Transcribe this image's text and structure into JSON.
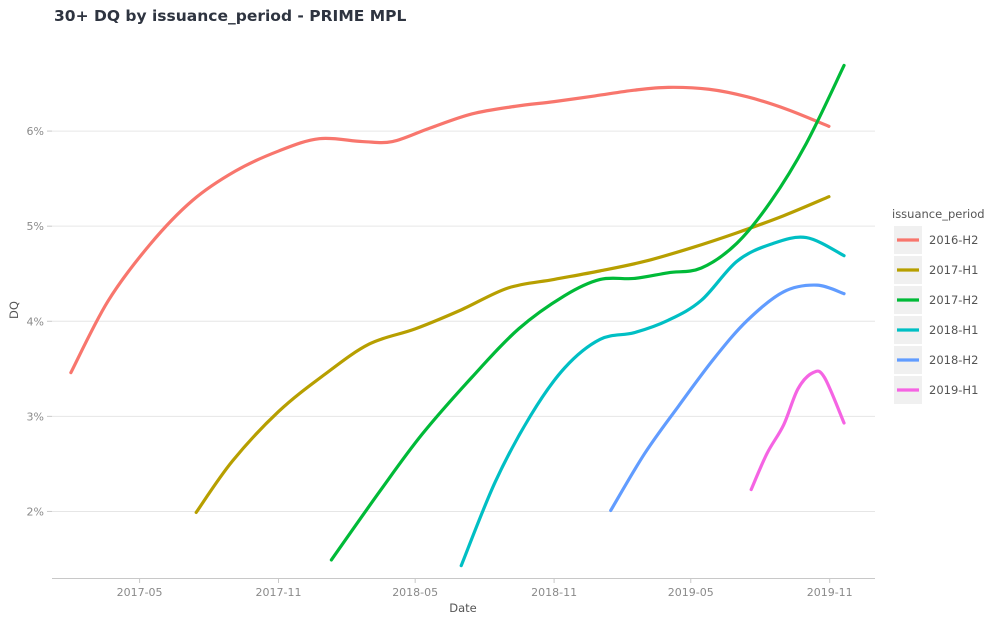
{
  "chart_data": {
    "type": "line",
    "title": "30+ DQ by issuance_period - PRIME MPL",
    "xlabel": "Date",
    "ylabel": "DQ",
    "xlim": [
      "2017-01-05",
      "2019-12-31"
    ],
    "ylim": [
      1.3,
      7.0
    ],
    "x_ticks": [
      {
        "date": "2017-05-01",
        "label": "2017-05"
      },
      {
        "date": "2017-11-01",
        "label": "2017-11"
      },
      {
        "date": "2018-05-01",
        "label": "2018-05"
      },
      {
        "date": "2018-11-01",
        "label": "2018-11"
      },
      {
        "date": "2019-05-01",
        "label": "2019-05"
      },
      {
        "date": "2019-11-01",
        "label": "2019-11"
      }
    ],
    "y_ticks": [
      {
        "value": 2,
        "label": "2%"
      },
      {
        "value": 3,
        "label": "3%"
      },
      {
        "value": 4,
        "label": "4%"
      },
      {
        "value": 5,
        "label": "5%"
      },
      {
        "value": 6,
        "label": "6%"
      }
    ],
    "grid": "horizontal",
    "legend": {
      "title": "issuance_period",
      "placement": "right"
    },
    "series": [
      {
        "name": "2016-H2",
        "color": "#F8766D",
        "points": [
          [
            "2017-01-30",
            3.46
          ],
          [
            "2017-03-20",
            4.21
          ],
          [
            "2017-05-15",
            4.81
          ],
          [
            "2017-07-10",
            5.27
          ],
          [
            "2017-09-05",
            5.58
          ],
          [
            "2017-11-01",
            5.79
          ],
          [
            "2017-12-25",
            5.92
          ],
          [
            "2018-02-20",
            5.89
          ],
          [
            "2018-04-01",
            5.89
          ],
          [
            "2018-05-20",
            6.03
          ],
          [
            "2018-07-15",
            6.18
          ],
          [
            "2018-09-10",
            6.26
          ],
          [
            "2018-11-01",
            6.31
          ],
          [
            "2018-12-25",
            6.37
          ],
          [
            "2019-02-15",
            6.43
          ],
          [
            "2019-04-01",
            6.46
          ],
          [
            "2019-05-25",
            6.44
          ],
          [
            "2019-07-15",
            6.36
          ],
          [
            "2019-09-05",
            6.23
          ],
          [
            "2019-10-31",
            6.05
          ]
        ]
      },
      {
        "name": "2017-H1",
        "color": "#B79F00",
        "points": [
          [
            "2017-07-15",
            1.99
          ],
          [
            "2017-09-01",
            2.53
          ],
          [
            "2017-11-01",
            3.05
          ],
          [
            "2018-01-01",
            3.44
          ],
          [
            "2018-03-01",
            3.76
          ],
          [
            "2018-05-01",
            3.92
          ],
          [
            "2018-07-01",
            4.12
          ],
          [
            "2018-09-01",
            4.35
          ],
          [
            "2018-11-01",
            4.44
          ],
          [
            "2019-01-01",
            4.53
          ],
          [
            "2019-03-01",
            4.63
          ],
          [
            "2019-05-01",
            4.77
          ],
          [
            "2019-07-01",
            4.93
          ],
          [
            "2019-09-01",
            5.11
          ],
          [
            "2019-10-31",
            5.31
          ]
        ]
      },
      {
        "name": "2017-H2",
        "color": "#00BA38",
        "points": [
          [
            "2018-01-10",
            1.49
          ],
          [
            "2018-03-15",
            2.21
          ],
          [
            "2018-05-10",
            2.81
          ],
          [
            "2018-07-15",
            3.41
          ],
          [
            "2018-09-15",
            3.92
          ],
          [
            "2018-11-15",
            4.27
          ],
          [
            "2019-01-01",
            4.44
          ],
          [
            "2019-02-15",
            4.45
          ],
          [
            "2019-04-01",
            4.51
          ],
          [
            "2019-05-15",
            4.56
          ],
          [
            "2019-07-01",
            4.82
          ],
          [
            "2019-08-15",
            5.26
          ],
          [
            "2019-10-01",
            5.87
          ],
          [
            "2019-11-20",
            6.69
          ]
        ]
      },
      {
        "name": "2018-H1",
        "color": "#00BFC4",
        "points": [
          [
            "2018-07-01",
            1.43
          ],
          [
            "2018-08-15",
            2.31
          ],
          [
            "2018-10-01",
            3.01
          ],
          [
            "2018-11-15",
            3.51
          ],
          [
            "2019-01-01",
            3.81
          ],
          [
            "2019-02-15",
            3.88
          ],
          [
            "2019-04-01",
            4.01
          ],
          [
            "2019-05-15",
            4.22
          ],
          [
            "2019-07-01",
            4.63
          ],
          [
            "2019-08-15",
            4.81
          ],
          [
            "2019-10-01",
            4.88
          ],
          [
            "2019-11-20",
            4.69
          ]
        ]
      },
      {
        "name": "2018-H2",
        "color": "#619CFF",
        "points": [
          [
            "2019-01-15",
            2.01
          ],
          [
            "2019-03-01",
            2.61
          ],
          [
            "2019-04-15",
            3.11
          ],
          [
            "2019-06-01",
            3.61
          ],
          [
            "2019-07-15",
            4.01
          ],
          [
            "2019-09-01",
            4.31
          ],
          [
            "2019-10-15",
            4.38
          ],
          [
            "2019-11-20",
            4.29
          ]
        ]
      },
      {
        "name": "2019-H1",
        "color": "#F564E3",
        "points": [
          [
            "2019-07-20",
            2.23
          ],
          [
            "2019-08-10",
            2.61
          ],
          [
            "2019-09-01",
            2.91
          ],
          [
            "2019-09-20",
            3.29
          ],
          [
            "2019-10-10",
            3.46
          ],
          [
            "2019-10-25",
            3.41
          ],
          [
            "2019-11-20",
            2.93
          ]
        ]
      }
    ]
  }
}
